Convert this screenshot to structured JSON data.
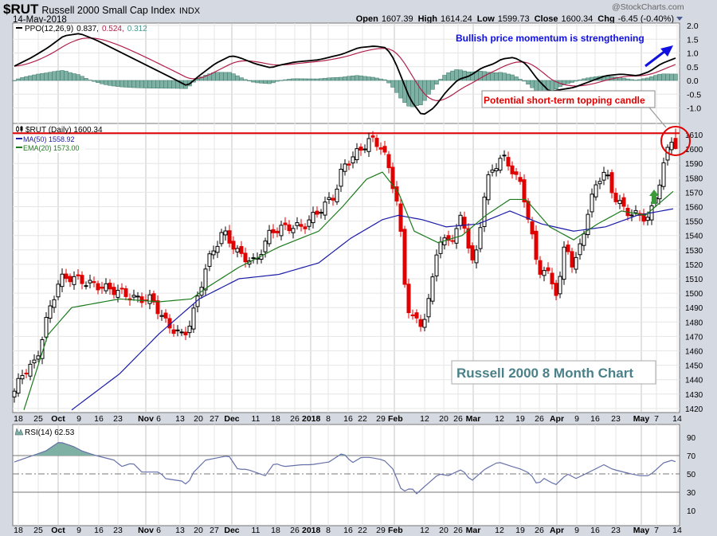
{
  "header": {
    "symbol": "$RUT",
    "name": "Russell 2000 Small Cap Index",
    "exchange": "INDX",
    "date": "14-May-2018",
    "watermark": "@StockCharts.com",
    "open_label": "Open",
    "open": "1607.39",
    "high_label": "High",
    "high": "1614.24",
    "low_label": "Low",
    "low": "1599.73",
    "close_label": "Close",
    "close": "1600.34",
    "chg_label": "Chg",
    "chg": "-6.45 (-0.40%)"
  },
  "legends": {
    "ppo_name": "PPO(12,26,9)",
    "ppo": "0.837,",
    "signal": "0.524,",
    "hist": "0.312",
    "price": "$RUT (Daily) 1600.34",
    "ma50": "MA(50) 1558.92",
    "ema20": "EMA(20) 1573.00",
    "rsi": "RSI(14) 62.53"
  },
  "annotations": {
    "bullish": "Bullish price momentum is strengthening",
    "topping": "Potential short-term topping candle",
    "title_box": "Russell 2000 8 Month Chart"
  },
  "colors": {
    "up": "#000000",
    "down": "#e00000",
    "ma50": "#1a1aa8",
    "ema20": "#1b7a1b",
    "ppo": "#000000",
    "signal": "#b0204a",
    "hist": "#7fb0a4",
    "rsi": "#6670a8",
    "annot_blue": "#1010e0",
    "annot_red": "#e00000",
    "title_teal": "#4a8088"
  },
  "chart_data": [
    {
      "type": "candlestick",
      "title": "$RUT (Daily)",
      "ylim": [
        1415,
        1618
      ],
      "yticks": [
        1420,
        1430,
        1440,
        1450,
        1460,
        1470,
        1480,
        1490,
        1500,
        1510,
        1520,
        1530,
        1540,
        1550,
        1560,
        1570,
        1580,
        1590,
        1600,
        1610
      ],
      "resistance_level": 1611,
      "close_waypoints": [
        [
          0,
          1432
        ],
        [
          2.4,
          1446
        ],
        [
          5.4,
          1452
        ],
        [
          8.4,
          1485
        ],
        [
          11.4,
          1510
        ],
        [
          14.4,
          1511
        ],
        [
          18.4,
          1507
        ],
        [
          22.4,
          1504
        ],
        [
          26.4,
          1501
        ],
        [
          30.4,
          1496
        ],
        [
          34.4,
          1496
        ],
        [
          38.4,
          1478
        ],
        [
          42.4,
          1470
        ],
        [
          44.4,
          1481
        ],
        [
          48.4,
          1521
        ],
        [
          52.4,
          1543
        ],
        [
          56.4,
          1527
        ],
        [
          60.4,
          1521
        ],
        [
          64.4,
          1543
        ],
        [
          68.4,
          1546
        ],
        [
          72.4,
          1546
        ],
        [
          76.4,
          1557
        ],
        [
          80.4,
          1568
        ],
        [
          82.4,
          1587
        ],
        [
          84.4,
          1593
        ],
        [
          87.4,
          1601
        ],
        [
          89.4,
          1607
        ],
        [
          92.4,
          1601
        ],
        [
          94.4,
          1582
        ],
        [
          96.4,
          1560
        ],
        [
          98.4,
          1493
        ],
        [
          100.4,
          1481
        ],
        [
          102.4,
          1478
        ],
        [
          104.4,
          1498
        ],
        [
          106.4,
          1537
        ],
        [
          108.4,
          1535
        ],
        [
          110.4,
          1540
        ],
        [
          112.4,
          1554
        ],
        [
          115.4,
          1516
        ],
        [
          118.4,
          1576
        ],
        [
          120.4,
          1587
        ],
        [
          122.4,
          1595
        ],
        [
          125.4,
          1584
        ],
        [
          127.4,
          1573
        ],
        [
          129.4,
          1548
        ],
        [
          131.4,
          1516
        ],
        [
          133.4,
          1516
        ],
        [
          136.4,
          1499
        ],
        [
          138.4,
          1537
        ],
        [
          140.4,
          1516
        ],
        [
          142.4,
          1537
        ],
        [
          144.4,
          1560
        ],
        [
          146.4,
          1579
        ],
        [
          148.4,
          1584
        ],
        [
          150.4,
          1568
        ],
        [
          153.4,
          1557
        ],
        [
          156.4,
          1554
        ],
        [
          159.4,
          1552
        ],
        [
          161.4,
          1571
        ],
        [
          163.4,
          1593
        ],
        [
          164.8,
          1607
        ]
      ],
      "last_candle": {
        "open": 1607.39,
        "high": 1614.24,
        "low": 1599.73,
        "close": 1600.34
      },
      "ma50": [
        [
          14.4,
          1419
        ],
        [
          26.4,
          1444
        ],
        [
          36.4,
          1472
        ],
        [
          46.4,
          1496
        ],
        [
          56.4,
          1510
        ],
        [
          66.4,
          1513
        ],
        [
          76.4,
          1521
        ],
        [
          84.4,
          1538
        ],
        [
          92.4,
          1551
        ],
        [
          96.4,
          1554
        ],
        [
          102.4,
          1551
        ],
        [
          108.4,
          1546
        ],
        [
          116.4,
          1548
        ],
        [
          124.4,
          1557
        ],
        [
          132.4,
          1548
        ],
        [
          140.4,
          1543
        ],
        [
          148.4,
          1546
        ],
        [
          156.4,
          1554
        ],
        [
          166.4,
          1559
        ]
      ],
      "ema20": [
        [
          2.4,
          1419
        ],
        [
          8.4,
          1471
        ],
        [
          14.4,
          1490
        ],
        [
          26.4,
          1496
        ],
        [
          36.4,
          1494
        ],
        [
          44.4,
          1496
        ],
        [
          48.4,
          1504
        ],
        [
          56.4,
          1518
        ],
        [
          66.4,
          1532
        ],
        [
          76.4,
          1543
        ],
        [
          82.4,
          1560
        ],
        [
          88.4,
          1579
        ],
        [
          92.4,
          1584
        ],
        [
          96.4,
          1570
        ],
        [
          100.4,
          1543
        ],
        [
          106.4,
          1535
        ],
        [
          112.4,
          1540
        ],
        [
          118.4,
          1554
        ],
        [
          124.4,
          1565
        ],
        [
          128.4,
          1565
        ],
        [
          134.4,
          1546
        ],
        [
          140.4,
          1537
        ],
        [
          146.4,
          1548
        ],
        [
          152.4,
          1557
        ],
        [
          158.4,
          1554
        ],
        [
          166.4,
          1573
        ]
      ]
    },
    {
      "type": "line",
      "title": "PPO(12,26,9)",
      "ylim": [
        -1.4,
        2.1
      ],
      "yticks": [
        "2.0",
        "1.5",
        "1.0",
        "0.5",
        "0.0",
        "-0.5",
        "-1.0"
      ],
      "ppo": [
        [
          0,
          0.52
        ],
        [
          4.4,
          0.84
        ],
        [
          8.4,
          1.19
        ],
        [
          12.4,
          1.62
        ],
        [
          16.4,
          1.71
        ],
        [
          20.4,
          1.48
        ],
        [
          24.4,
          1.19
        ],
        [
          28.4,
          0.9
        ],
        [
          32.4,
          0.61
        ],
        [
          36.4,
          0.32
        ],
        [
          40.4,
          0.03
        ],
        [
          43.4,
          -0.2
        ],
        [
          46.4,
          0.17
        ],
        [
          50.4,
          0.61
        ],
        [
          54.4,
          0.9
        ],
        [
          56.4,
          0.84
        ],
        [
          60.4,
          0.61
        ],
        [
          64.4,
          0.46
        ],
        [
          66.4,
          0.55
        ],
        [
          70.4,
          0.67
        ],
        [
          76.4,
          0.75
        ],
        [
          82.4,
          0.96
        ],
        [
          86.4,
          1.19
        ],
        [
          90.4,
          1.25
        ],
        [
          93.4,
          1.19
        ],
        [
          95.4,
          0.75
        ],
        [
          97.4,
          0.03
        ],
        [
          99.4,
          -0.7
        ],
        [
          102.4,
          -1.28
        ],
        [
          105.4,
          -0.99
        ],
        [
          108.4,
          -0.41
        ],
        [
          111.4,
          0.03
        ],
        [
          114.4,
          0.17
        ],
        [
          117.4,
          0.46
        ],
        [
          120.4,
          0.61
        ],
        [
          122.4,
          0.78
        ],
        [
          125.4,
          0.84
        ],
        [
          128.4,
          0.61
        ],
        [
          131.4,
          0.03
        ],
        [
          134.4,
          -0.41
        ],
        [
          136.4,
          -0.35
        ],
        [
          140.4,
          -0.26
        ],
        [
          148.4,
          0.17
        ],
        [
          152.4,
          0.23
        ],
        [
          156.4,
          0.17
        ],
        [
          159.4,
          0.32
        ],
        [
          162.4,
          0.61
        ],
        [
          166.4,
          0.837
        ]
      ]
    },
    {
      "type": "line",
      "title": "RSI(14)",
      "ylim": [
        0,
        100
      ],
      "yticks": [
        "90",
        "70",
        "50",
        "30",
        "10"
      ],
      "levels": [
        70,
        50,
        30
      ],
      "rsi": [
        [
          0,
          63
        ],
        [
          3.3,
          68
        ],
        [
          7.9,
          75
        ],
        [
          11.3,
          85
        ],
        [
          14.8,
          80
        ],
        [
          17,
          75
        ],
        [
          20.5,
          70
        ],
        [
          25.1,
          65
        ],
        [
          26.9,
          58
        ],
        [
          29.7,
          62
        ],
        [
          32,
          52
        ],
        [
          36.6,
          52
        ],
        [
          37.7,
          45
        ],
        [
          42.3,
          42
        ],
        [
          43.5,
          37
        ],
        [
          44.6,
          50
        ],
        [
          48,
          65
        ],
        [
          51.5,
          68
        ],
        [
          53.8,
          70
        ],
        [
          56.1,
          55
        ],
        [
          58.4,
          55
        ],
        [
          63,
          48
        ],
        [
          65.3,
          62
        ],
        [
          67.6,
          58
        ],
        [
          72.2,
          60
        ],
        [
          74.5,
          60
        ],
        [
          79,
          63
        ],
        [
          82.5,
          73
        ],
        [
          84.8,
          62
        ],
        [
          87.1,
          68
        ],
        [
          89.4,
          68
        ],
        [
          92.8,
          65
        ],
        [
          95.1,
          55
        ],
        [
          97.4,
          30
        ],
        [
          99.7,
          35
        ],
        [
          100.9,
          28
        ],
        [
          103.2,
          37
        ],
        [
          106.6,
          50
        ],
        [
          108.9,
          48
        ],
        [
          112.4,
          55
        ],
        [
          114.7,
          42
        ],
        [
          118.1,
          55
        ],
        [
          121.5,
          63
        ],
        [
          125,
          58
        ],
        [
          127.3,
          55
        ],
        [
          129.6,
          50
        ],
        [
          131.3,
          38
        ],
        [
          133,
          45
        ],
        [
          134.2,
          42
        ],
        [
          135.9,
          38
        ],
        [
          138.8,
          50
        ],
        [
          141,
          45
        ],
        [
          143.4,
          50
        ],
        [
          145.7,
          55
        ],
        [
          148,
          60
        ],
        [
          150.2,
          55
        ],
        [
          154.8,
          50
        ],
        [
          157.1,
          48
        ],
        [
          159.4,
          48
        ],
        [
          163,
          62
        ],
        [
          165.2,
          65
        ],
        [
          166.4,
          62.53
        ]
      ]
    }
  ],
  "x_ticks": [
    [
      "18",
      1
    ],
    [
      "25",
      6
    ],
    [
      "Oct",
      11
    ],
    [
      "9",
      16.2
    ],
    [
      "16",
      21.2
    ],
    [
      "23",
      26
    ],
    [
      "Nov",
      33
    ],
    [
      "6",
      36.2
    ],
    [
      "13",
      41.6
    ],
    [
      "20",
      46.2
    ],
    [
      "27",
      50.2
    ],
    [
      "Dec",
      54.6
    ],
    [
      "11",
      60.6
    ],
    [
      "18",
      65.6
    ],
    [
      "26",
      70.4
    ],
    [
      "2018",
      74.4
    ],
    [
      "8",
      78.8
    ],
    [
      "16",
      83.8
    ],
    [
      "22",
      87.4
    ],
    [
      "29",
      92
    ],
    [
      "Feb",
      95.4
    ],
    [
      "12",
      103
    ],
    [
      "20",
      107.8
    ],
    [
      "26",
      111.4
    ],
    [
      "Mar",
      115.2
    ],
    [
      "12",
      121.8
    ],
    [
      "19",
      127
    ],
    [
      "26",
      131.8
    ],
    [
      "Apr",
      136.2
    ],
    [
      "9",
      141.2
    ],
    [
      "16",
      145.8
    ],
    [
      "23",
      151
    ],
    [
      "May",
      157.4
    ],
    [
      "7",
      161.2
    ],
    [
      "14",
      166.4
    ]
  ]
}
